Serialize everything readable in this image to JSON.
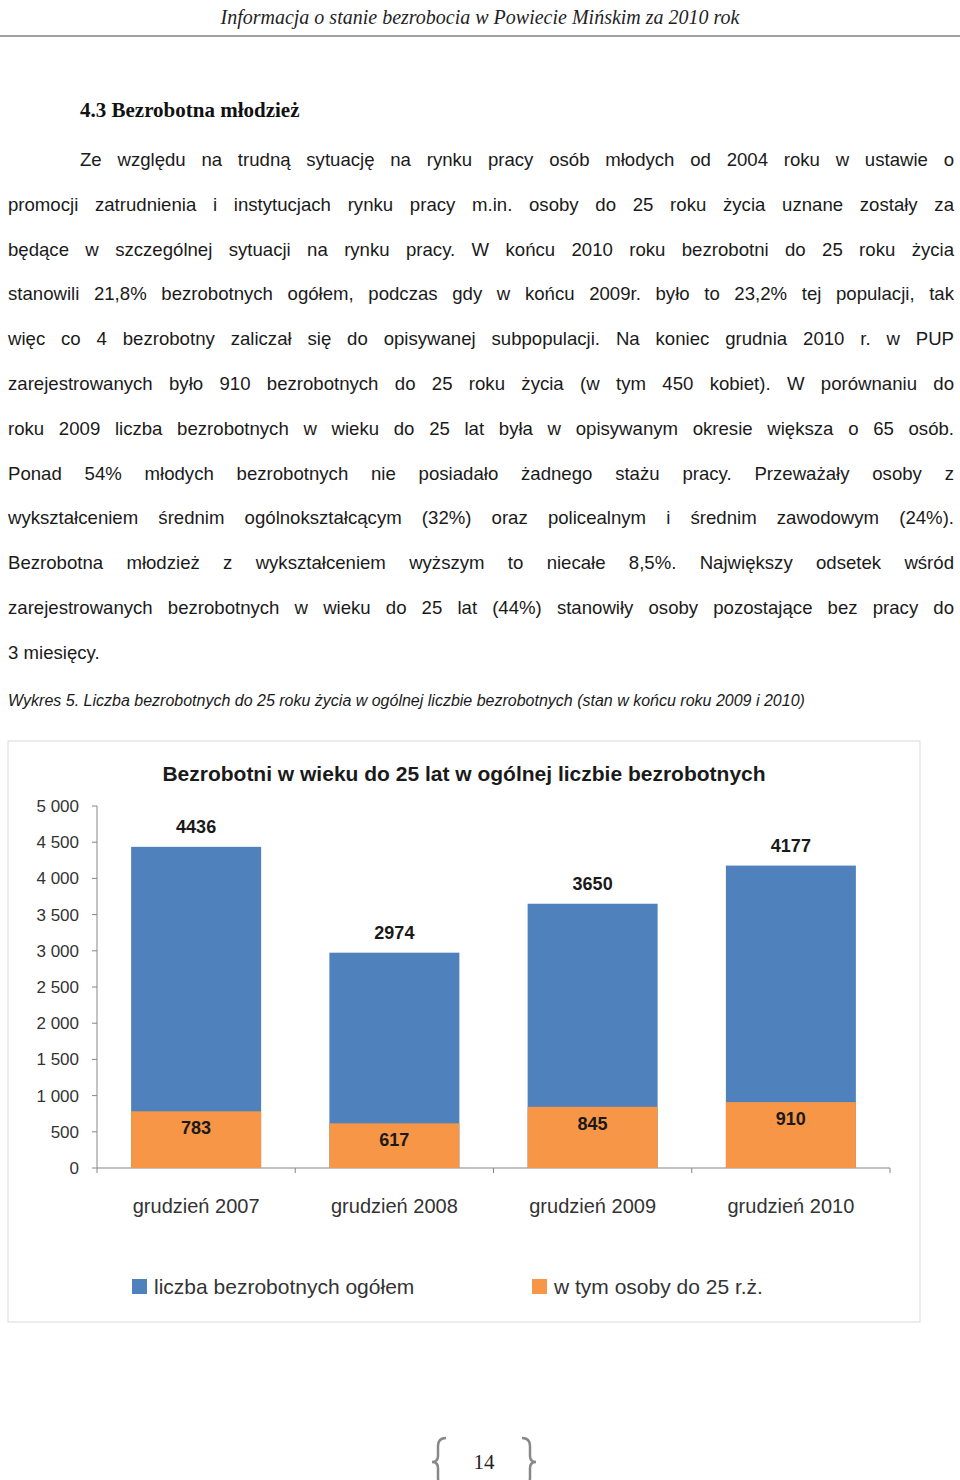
{
  "header": "Informacja o stanie bezrobocia w Powiecie Mińskim za 2010 rok",
  "heading": "4.3 Bezrobotna młodzież",
  "paragraph_lines": [
    "Ze względu na trudną sytuację na rynku pracy osób młodych od 2004 roku w ustawie o",
    "promocji zatrudnienia i instytucjach rynku pracy m.in. osoby do 25 roku życia uznane zostały za",
    "będące w szczególnej sytuacji na rynku pracy. W końcu 2010 roku bezrobotni do 25 roku życia",
    "stanowili 21,8% bezrobotnych ogółem, podczas gdy w końcu 2009r. było to 23,2% tej populacji, tak",
    "więc co 4 bezrobotny zaliczał się do opisywanej subpopulacji. Na koniec grudnia 2010 r. w PUP",
    "zarejestrowanych było 910 bezrobotnych do 25 roku życia (w tym 450 kobiet). W porównaniu do",
    "roku 2009 liczba bezrobotnych w wieku do 25 lat była w opisywanym okresie większa o 65 osób.",
    "Ponad 54% młodych bezrobotnych nie posiadało żadnego stażu pracy. Przeważały osoby z",
    "wykształceniem średnim ogólnokształcącym (32%) oraz policealnym i średnim zawodowym (24%).",
    "Bezrobotna młodzież z wykształceniem wyższym to niecałe 8,5%. Największy odsetek wśród",
    "zarejestrowanych bezrobotnych w wieku do 25 lat (44%) stanowiły osoby pozostające bez pracy do",
    "3 miesięcy."
  ],
  "caption": "Wykres 5. Liczba bezrobotnych do 25 roku życia w ogólnej liczbie bezrobotnych (stan w końcu roku 2009 i 2010)",
  "chart_data": {
    "type": "bar",
    "title": "Bezrobotni w wieku do 25 lat w ogólnej liczbie bezrobotnych",
    "categories": [
      "grudzień 2007",
      "grudzień 2008",
      "grudzień 2009",
      "grudzień 2010"
    ],
    "series": [
      {
        "name": "liczba bezrobotnych ogółem",
        "color": "#4f81bd",
        "values": [
          4436,
          2974,
          3650,
          4177
        ]
      },
      {
        "name": "w tym osoby do 25 r.ż.",
        "color": "#f79646",
        "values": [
          783,
          617,
          845,
          910
        ]
      }
    ],
    "ylim": [
      0,
      5000
    ],
    "yticks": [
      0,
      500,
      {
        "value": 1000,
        "label": "1 000"
      },
      {
        "value": 1500,
        "label": "1 500"
      },
      {
        "value": 2000,
        "label": "2 000"
      },
      {
        "value": 2500,
        "label": "2 500"
      },
      {
        "value": 3000,
        "label": "3 000"
      },
      {
        "value": 3500,
        "label": "3 500"
      },
      {
        "value": 4000,
        "label": "4 000"
      },
      {
        "value": 4500,
        "label": "4 500"
      },
      {
        "value": 5000,
        "label": "5 000"
      }
    ],
    "stacked": false,
    "data_labels": true,
    "grid": false,
    "legend": "bottom"
  },
  "page_number": "14"
}
